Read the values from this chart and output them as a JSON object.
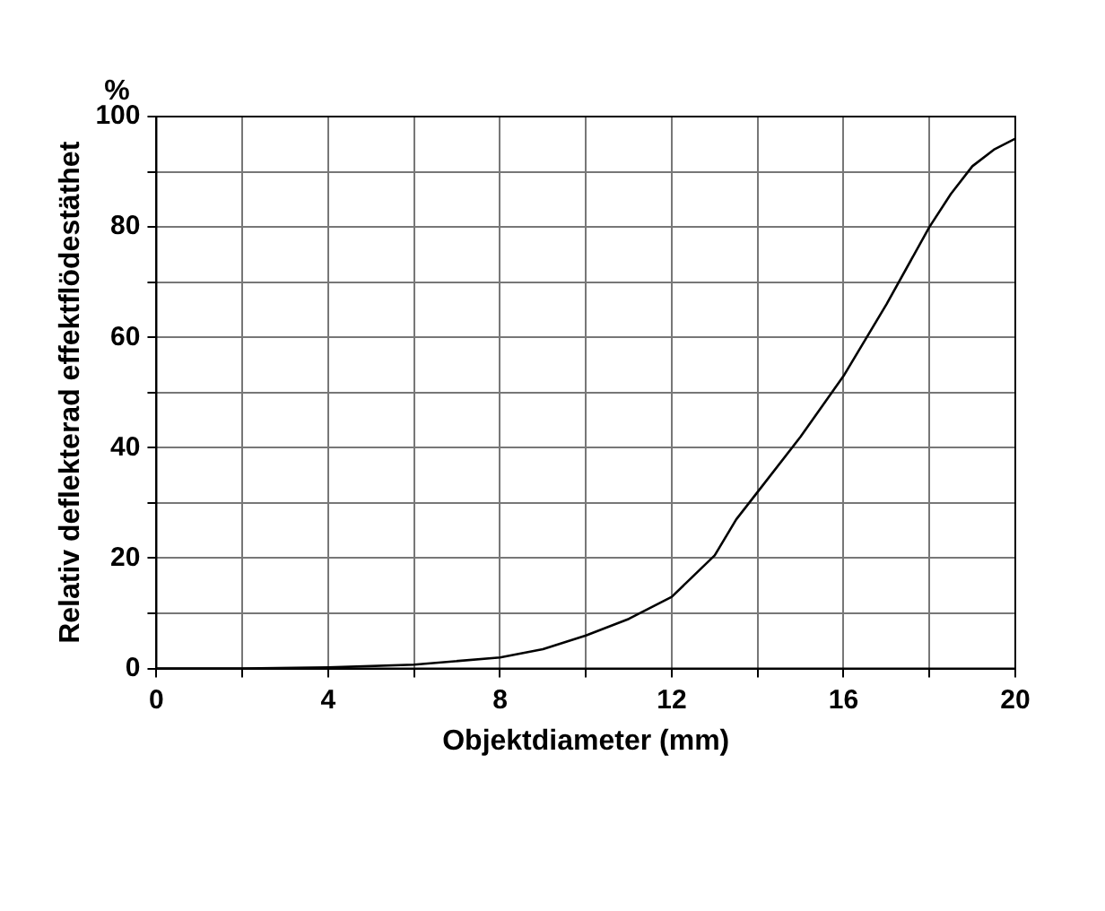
{
  "chart_data": {
    "type": "line",
    "xlabel": "Objektdiameter (mm)",
    "ylabel": "Relativ deflekterad effektflödestäthet",
    "annotations": [
      "%"
    ],
    "x": [
      0,
      2,
      4,
      6,
      8,
      9,
      10,
      11,
      12,
      13,
      13.5,
      14,
      15,
      16,
      17,
      18,
      18.5,
      19,
      19.5,
      20
    ],
    "series": [
      {
        "color": "#000000",
        "values": [
          0,
          0,
          0.2,
          0.7,
          2,
          3.5,
          6,
          9,
          13,
          20.5,
          27,
          32,
          42,
          53,
          66,
          80,
          86,
          91,
          94,
          96
        ]
      }
    ],
    "xlim": [
      0,
      20
    ],
    "xticks": [
      0,
      {
        "value": 2,
        "label": null
      },
      4,
      {
        "value": 6,
        "label": null
      },
      8,
      {
        "value": 10,
        "label": null
      },
      12,
      {
        "value": 14,
        "label": null
      },
      16,
      {
        "value": 18,
        "label": null
      },
      20
    ],
    "ylim": [
      0,
      100
    ],
    "yticks": [
      0,
      {
        "value": 10,
        "label": null
      },
      20,
      {
        "value": 30,
        "label": null
      },
      40,
      {
        "value": 50,
        "label": null
      },
      60,
      {
        "value": 70,
        "label": null
      },
      80,
      {
        "value": 90,
        "label": null
      },
      100
    ],
    "grid": true,
    "legend": false,
    "marker": "none",
    "line_style": "solid"
  }
}
